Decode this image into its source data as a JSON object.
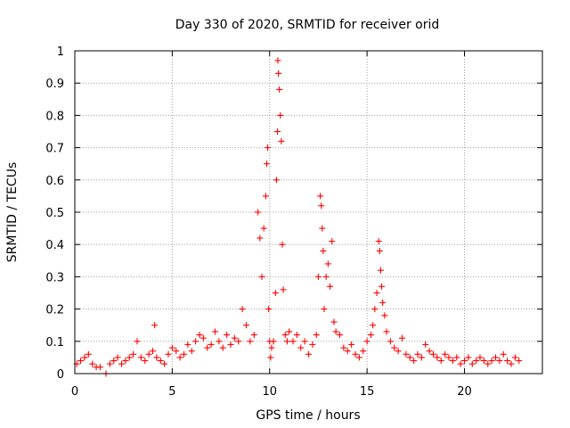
{
  "chart_data": {
    "type": "scatter",
    "title": "Day 330 of 2020, SRMTID for receiver orid",
    "xlabel": "GPS time / hours",
    "ylabel": "SRMTID / TECUs",
    "xlim": [
      0,
      24
    ],
    "ylim": [
      0,
      1
    ],
    "xticks": [
      0,
      5,
      10,
      15,
      20
    ],
    "xtick_labels": [
      "0",
      "5",
      "10",
      "15",
      "20"
    ],
    "yticks": [
      0,
      0.1,
      0.2,
      0.3,
      0.4,
      0.5,
      0.6,
      0.7,
      0.8,
      0.9,
      1
    ],
    "ytick_labels": [
      "0",
      "0.1",
      "0.2",
      "0.3",
      "0.4",
      "0.5",
      "0.6",
      "0.7",
      "0.8",
      "0.9",
      "1"
    ],
    "grid": true,
    "marker": "+",
    "color": "#ff0000",
    "series": [
      {
        "name": "SRMTID",
        "x": [
          0.1,
          0.3,
          0.5,
          0.7,
          0.9,
          1.1,
          1.3,
          1.6,
          1.8,
          2.0,
          2.2,
          2.4,
          2.6,
          2.8,
          3.0,
          3.2,
          3.4,
          3.6,
          3.8,
          4.0,
          4.1,
          4.2,
          4.4,
          4.6,
          4.8,
          5.0,
          5.2,
          5.4,
          5.6,
          5.8,
          6.0,
          6.2,
          6.4,
          6.6,
          6.8,
          7.0,
          7.2,
          7.4,
          7.6,
          7.8,
          8.0,
          8.2,
          8.4,
          8.6,
          8.8,
          9.0,
          9.2,
          9.4,
          9.5,
          9.6,
          9.7,
          9.8,
          9.85,
          9.9,
          9.95,
          10.0,
          10.05,
          10.1,
          10.2,
          10.3,
          10.35,
          10.4,
          10.42,
          10.45,
          10.5,
          10.55,
          10.6,
          10.65,
          10.7,
          10.8,
          10.9,
          11.0,
          11.2,
          11.4,
          11.6,
          11.8,
          12.0,
          12.2,
          12.4,
          12.5,
          12.6,
          12.65,
          12.7,
          12.75,
          12.8,
          12.9,
          13.0,
          13.1,
          13.2,
          13.3,
          13.4,
          13.6,
          13.8,
          14.0,
          14.2,
          14.4,
          14.6,
          14.8,
          15.0,
          15.2,
          15.3,
          15.4,
          15.5,
          15.6,
          15.65,
          15.7,
          15.75,
          15.8,
          15.9,
          16.0,
          16.2,
          16.4,
          16.6,
          16.8,
          17.0,
          17.2,
          17.4,
          17.6,
          17.8,
          18.0,
          18.2,
          18.4,
          18.6,
          18.8,
          19.0,
          19.2,
          19.4,
          19.6,
          19.8,
          20.0,
          20.2,
          20.4,
          20.6,
          20.8,
          21.0,
          21.2,
          21.4,
          21.6,
          21.8,
          22.0,
          22.2,
          22.4,
          22.6,
          22.8
        ],
        "y": [
          0.03,
          0.04,
          0.05,
          0.06,
          0.03,
          0.02,
          0.02,
          0.0,
          0.03,
          0.04,
          0.05,
          0.03,
          0.04,
          0.05,
          0.06,
          0.1,
          0.05,
          0.04,
          0.06,
          0.07,
          0.15,
          0.05,
          0.04,
          0.03,
          0.06,
          0.08,
          0.07,
          0.05,
          0.06,
          0.09,
          0.07,
          0.1,
          0.12,
          0.11,
          0.08,
          0.09,
          0.13,
          0.1,
          0.08,
          0.12,
          0.09,
          0.11,
          0.1,
          0.2,
          0.15,
          0.1,
          0.12,
          0.5,
          0.42,
          0.3,
          0.45,
          0.55,
          0.65,
          0.7,
          0.2,
          0.1,
          0.05,
          0.08,
          0.1,
          0.25,
          0.6,
          0.75,
          0.97,
          0.93,
          0.88,
          0.8,
          0.72,
          0.4,
          0.26,
          0.12,
          0.1,
          0.13,
          0.1,
          0.12,
          0.08,
          0.1,
          0.06,
          0.09,
          0.12,
          0.3,
          0.55,
          0.52,
          0.45,
          0.38,
          0.2,
          0.3,
          0.34,
          0.27,
          0.41,
          0.16,
          0.13,
          0.12,
          0.08,
          0.07,
          0.09,
          0.06,
          0.05,
          0.07,
          0.1,
          0.12,
          0.15,
          0.2,
          0.25,
          0.41,
          0.38,
          0.32,
          0.27,
          0.22,
          0.18,
          0.13,
          0.1,
          0.08,
          0.07,
          0.11,
          0.06,
          0.05,
          0.04,
          0.06,
          0.05,
          0.09,
          0.07,
          0.06,
          0.05,
          0.04,
          0.06,
          0.05,
          0.04,
          0.05,
          0.03,
          0.04,
          0.05,
          0.03,
          0.04,
          0.05,
          0.04,
          0.03,
          0.04,
          0.05,
          0.04,
          0.06,
          0.04,
          0.03,
          0.05,
          0.04
        ]
      }
    ]
  }
}
